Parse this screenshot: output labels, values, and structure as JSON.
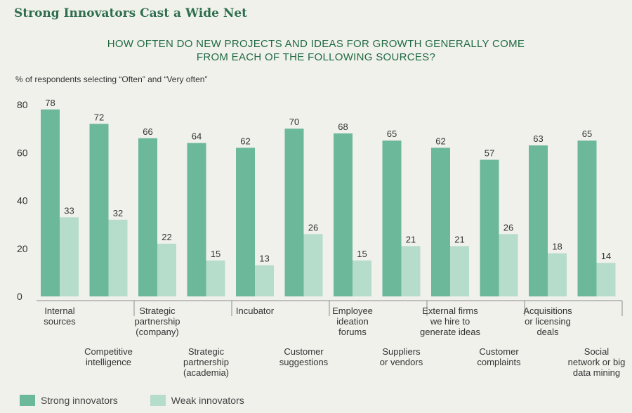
{
  "header": {
    "title": "Strong Innovators Cast a Wide Net"
  },
  "chart_data": {
    "type": "bar",
    "title_lines": [
      "HOW OFTEN DO NEW PROJECTS AND IDEAS FOR GROWTH GENERALLY COME",
      "FROM EACH OF THE FOLLOWING SOURCES?"
    ],
    "ylabel": "% of respondents selecting “Often” and “Very often”",
    "xlabel": "",
    "ylim": [
      0,
      80
    ],
    "yticks": [
      0,
      20,
      40,
      60,
      80
    ],
    "grid": false,
    "legend_position": "bottom-left",
    "categories": [
      [
        "Internal",
        "sources"
      ],
      [
        "Competitive",
        "intelligence"
      ],
      [
        "Strategic",
        "partnership",
        "(company)"
      ],
      [
        "Strategic",
        "partnership",
        "(academia)"
      ],
      [
        "Incubator"
      ],
      [
        "Customer",
        "suggestions"
      ],
      [
        "Employee",
        "ideation",
        "forums"
      ],
      [
        "Suppliers",
        "or vendors"
      ],
      [
        "External firms",
        "we hire to",
        "generate ideas"
      ],
      [
        "Customer",
        "complaints"
      ],
      [
        "Acquisitions",
        "or licensing",
        "deals"
      ],
      [
        "Social",
        "network or big",
        "data mining"
      ]
    ],
    "series": [
      {
        "name": "Strong innovators",
        "color": "#6cb89b",
        "values": [
          78,
          72,
          66,
          64,
          62,
          70,
          68,
          65,
          62,
          57,
          63,
          65
        ]
      },
      {
        "name": "Weak innovators",
        "color": "#b6dccb",
        "values": [
          33,
          32,
          22,
          15,
          13,
          26,
          15,
          21,
          21,
          26,
          18,
          14
        ]
      }
    ]
  }
}
